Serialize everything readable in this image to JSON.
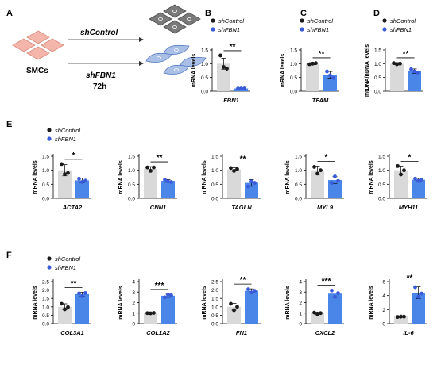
{
  "colors": {
    "control_bar": "#d9d9d9",
    "treatment_bar": "#4a86e8",
    "control_dot": "#1a1a1a",
    "treatment_dot": "#3b5bdb",
    "cell_control": "#f4b6ab",
    "cell_control_edge": "#d98a7c",
    "cell_dark": "#7a7a7a",
    "cell_dark_edge": "#4d4d4d",
    "cell_blue": "#a9bfe6",
    "cell_blue_edge": "#5b7fc4"
  },
  "schematic": {
    "panel_label": "A",
    "source_label": "SMCs",
    "arrow_top_label": "shControl",
    "arrow_bottom_label": "shFBN1",
    "time_label": "72h"
  },
  "legend": {
    "control": "shControl",
    "treatment": "shFBN1"
  },
  "chart_data": [
    {
      "type": "bar",
      "panel": "B",
      "gene": "FBN1",
      "ylabel": "mRNA levels",
      "ylim": [
        0,
        1.5
      ],
      "yticks": [
        0,
        0.5,
        1.0,
        1.5
      ],
      "ytick_labels": [
        "0.0",
        "0.5",
        "1.0",
        "1.5"
      ],
      "categories": [
        "shControl",
        "shFBN1"
      ],
      "values": [
        1.0,
        0.1
      ],
      "errors": [
        0.2,
        0.01
      ],
      "points": [
        [
          1.3,
          0.88,
          0.82
        ],
        [
          0.1,
          0.1,
          0.1
        ]
      ],
      "significance": "**",
      "legend": true
    },
    {
      "type": "bar",
      "panel": "C",
      "gene": "TFAM",
      "ylabel": "mRNA levels",
      "ylim": [
        0,
        1.5
      ],
      "yticks": [
        0,
        0.5,
        1.0,
        1.5
      ],
      "ytick_labels": [
        "0.0",
        "0.5",
        "1.0",
        "1.5"
      ],
      "categories": [
        "shControl",
        "shFBN1"
      ],
      "values": [
        1.0,
        0.6
      ],
      "errors": [
        0.04,
        0.12
      ],
      "points": [
        [
          0.98,
          1.0,
          1.02
        ],
        [
          0.72,
          0.58,
          0.48
        ]
      ],
      "significance": "**",
      "legend": true
    },
    {
      "type": "bar",
      "panel": "D",
      "gene": "",
      "ylabel": "mtDNA/nDNA levels",
      "ylim": [
        0,
        1.5
      ],
      "yticks": [
        0,
        0.5,
        1.0,
        1.5
      ],
      "ytick_labels": [
        "0.0",
        "0.5",
        "1.0",
        "1.5"
      ],
      "categories": [
        "shControl",
        "shFBN1"
      ],
      "values": [
        1.0,
        0.73
      ],
      "errors": [
        0.04,
        0.08
      ],
      "points": [
        [
          1.02,
          0.98,
          1.0
        ],
        [
          0.8,
          0.72,
          0.68
        ]
      ],
      "significance": "**",
      "legend": true
    },
    {
      "type": "bar",
      "panel": "E",
      "gene": "ACTA2",
      "ylabel": "mRNA levels",
      "ylim": [
        0,
        1.5
      ],
      "yticks": [
        0,
        0.5,
        1.0,
        1.5
      ],
      "ytick_labels": [
        "0.0",
        "0.5",
        "1.0",
        "1.5"
      ],
      "categories": [
        "shControl",
        "shFBN1"
      ],
      "values": [
        1.0,
        0.64
      ],
      "errors": [
        0.2,
        0.08
      ],
      "points": [
        [
          1.22,
          0.86,
          0.9
        ],
        [
          0.7,
          0.58,
          0.63
        ]
      ],
      "significance": "*",
      "legend": false
    },
    {
      "type": "bar",
      "gene": "CNN1",
      "ylabel": "mRNA levels",
      "ylim": [
        0,
        1.5
      ],
      "yticks": [
        0,
        0.5,
        1.0,
        1.5
      ],
      "ytick_labels": [
        "0.0",
        "0.5",
        "1.0",
        "1.5"
      ],
      "categories": [
        "shControl",
        "shFBN1"
      ],
      "values": [
        1.05,
        0.62
      ],
      "errors": [
        0.08,
        0.05
      ],
      "points": [
        [
          1.1,
          0.98,
          1.1
        ],
        [
          0.66,
          0.6,
          0.58
        ]
      ],
      "significance": "**",
      "legend": false
    },
    {
      "type": "bar",
      "gene": "TAGLN",
      "ylabel": "mRNA levels",
      "ylim": [
        0,
        1.5
      ],
      "yticks": [
        0,
        0.5,
        1.0,
        1.5
      ],
      "ytick_labels": [
        "0.0",
        "0.5",
        "1.0",
        "1.5"
      ],
      "categories": [
        "shControl",
        "shFBN1"
      ],
      "values": [
        1.03,
        0.55
      ],
      "errors": [
        0.06,
        0.12
      ],
      "points": [
        [
          1.08,
          0.98,
          1.04
        ],
        [
          0.42,
          0.6,
          0.55
        ]
      ],
      "significance": "**",
      "legend": false
    },
    {
      "type": "bar",
      "gene": "MYL9",
      "ylabel": "mRNA levels",
      "ylim": [
        0,
        1.5
      ],
      "yticks": [
        0,
        0.5,
        1.0,
        1.5
      ],
      "ytick_labels": [
        "0.0",
        "0.5",
        "1.0",
        "1.5"
      ],
      "categories": [
        "shControl",
        "shFBN1"
      ],
      "values": [
        1.0,
        0.65
      ],
      "errors": [
        0.15,
        0.12
      ],
      "points": [
        [
          1.12,
          0.88,
          1.0
        ],
        [
          0.55,
          0.78,
          0.62
        ]
      ],
      "significance": "*",
      "legend": false
    },
    {
      "type": "bar",
      "gene": "MYH11",
      "ylabel": "mRNA levels",
      "ylim": [
        0,
        1.5
      ],
      "yticks": [
        0,
        0.5,
        1.0,
        1.5
      ],
      "ytick_labels": [
        "0.0",
        "0.5",
        "1.0",
        "1.5"
      ],
      "categories": [
        "shControl",
        "shFBN1"
      ],
      "values": [
        1.0,
        0.66
      ],
      "errors": [
        0.15,
        0.05
      ],
      "points": [
        [
          1.15,
          0.85,
          1.0
        ],
        [
          0.7,
          0.62,
          0.66
        ]
      ],
      "significance": "*",
      "legend": false
    },
    {
      "type": "bar",
      "panel": "F",
      "gene": "COL3A1",
      "ylabel": "mRNA levels",
      "ylim": [
        0,
        2.5
      ],
      "yticks": [
        0,
        0.5,
        1.0,
        1.5,
        2.0,
        2.5
      ],
      "ytick_labels": [
        "0.0",
        "0.5",
        "1.0",
        "1.5",
        "2.0",
        "2.5"
      ],
      "categories": [
        "shControl",
        "shFBN1"
      ],
      "values": [
        1.0,
        1.75
      ],
      "errors": [
        0.18,
        0.12
      ],
      "points": [
        [
          1.18,
          0.85,
          0.98
        ],
        [
          1.8,
          1.62,
          1.82
        ]
      ],
      "significance": "**",
      "legend": false
    },
    {
      "type": "bar",
      "gene": "COL1A2",
      "ylabel": "mRNA levels",
      "ylim": [
        0,
        4
      ],
      "yticks": [
        0,
        1,
        2,
        3,
        4
      ],
      "ytick_labels": [
        "0",
        "1",
        "2",
        "3",
        "4"
      ],
      "categories": [
        "shControl",
        "shFBN1"
      ],
      "values": [
        1.0,
        2.65
      ],
      "errors": [
        0.05,
        0.15
      ],
      "points": [
        [
          1.0,
          0.98,
          1.02
        ],
        [
          2.5,
          2.75,
          2.7
        ]
      ],
      "significance": "***",
      "legend": false
    },
    {
      "type": "bar",
      "gene": "FN1",
      "ylabel": "mRNA levels",
      "ylim": [
        0,
        2.5
      ],
      "yticks": [
        0,
        0.5,
        1.0,
        1.5,
        2.0,
        2.5
      ],
      "ytick_labels": [
        "0.0",
        "0.5",
        "1.0",
        "1.5",
        "2.0",
        "2.5"
      ],
      "categories": [
        "shControl",
        "shFBN1"
      ],
      "values": [
        1.0,
        1.95
      ],
      "errors": [
        0.2,
        0.12
      ],
      "points": [
        [
          1.18,
          0.8,
          1.0
        ],
        [
          2.05,
          1.85,
          1.95
        ]
      ],
      "significance": "**",
      "legend": false
    },
    {
      "type": "bar",
      "gene": "CXCL2",
      "ylabel": "mRNA levels",
      "ylim": [
        0,
        4
      ],
      "yticks": [
        0,
        1,
        2,
        3,
        4
      ],
      "ytick_labels": [
        "0",
        "1",
        "2",
        "3",
        "4"
      ],
      "categories": [
        "shControl",
        "shFBN1"
      ],
      "values": [
        1.0,
        2.85
      ],
      "errors": [
        0.1,
        0.35
      ],
      "points": [
        [
          1.05,
          0.9,
          1.0
        ],
        [
          3.15,
          2.55,
          2.9
        ]
      ],
      "significance": "***",
      "legend": false
    },
    {
      "type": "bar",
      "gene": "IL-6",
      "ylabel": "mRNA levels",
      "ylim": [
        0,
        6
      ],
      "yticks": [
        0,
        2,
        4,
        6
      ],
      "ytick_labels": [
        "0",
        "2",
        "4",
        "6"
      ],
      "categories": [
        "shControl",
        "shFBN1"
      ],
      "values": [
        1.0,
        4.4
      ],
      "errors": [
        0.05,
        0.85
      ],
      "points": [
        [
          0.95,
          1.0,
          1.0
        ],
        [
          5.2,
          3.8,
          4.3
        ]
      ],
      "significance": "**",
      "legend": false
    }
  ]
}
